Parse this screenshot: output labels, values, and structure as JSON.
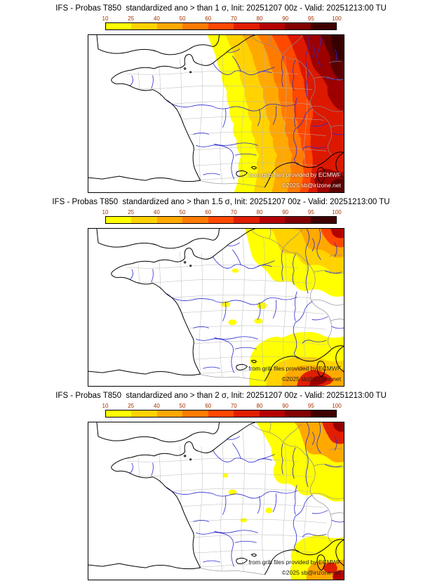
{
  "panels": [
    {
      "title": "IFS - Probas T850  standardized ano > than 1 σ, Init: 20251207 00z - Valid: 20251213:00 TU",
      "credits": {
        "line1": "from grib files provided by ECMWF",
        "line2": "©2025 sb@irizone.net"
      }
    },
    {
      "title": "IFS - Probas T850  standardized ano > than 1.5 σ, Init: 20251207 00z - Valid: 20251213:00 TU",
      "credits": {
        "line1": "from grib files provided by ECMWF",
        "line2": "©2025 sb@irizone.net"
      }
    },
    {
      "title": "IFS - Probas T850  standardized ano > than 2 σ, Init: 20251207 00z - Valid: 20251213:00 TU",
      "credits": {
        "line1": "from grib files provided by ECMWF",
        "line2": "©2025 sb@irizone.net"
      }
    }
  ],
  "colorbar": {
    "ticks": [
      "10",
      "25",
      "40",
      "50",
      "60",
      "70",
      "80",
      "90",
      "95",
      "100"
    ],
    "colors": [
      "#ffff00",
      "#ffd200",
      "#ffa800",
      "#ff7b00",
      "#ff4800",
      "#e11e00",
      "#b40000",
      "#820000",
      "#3f0000"
    ]
  },
  "map_colors": {
    "river": "#2a2ad0",
    "coastline": "#000000",
    "department_border": "#b8b8b8",
    "country_border": "#8c8c8c"
  }
}
